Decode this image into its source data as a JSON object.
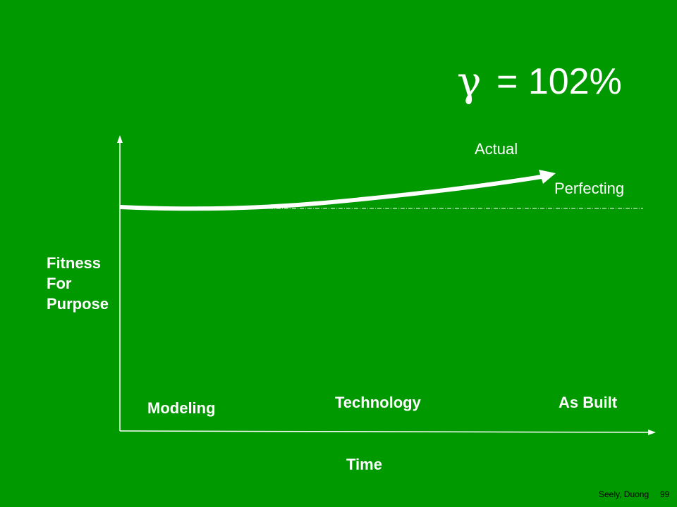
{
  "slide": {
    "gamma_symbol": "γ",
    "gamma_text": "= 102%",
    "actual_label": "Actual",
    "perfecting_label": "Perfecting",
    "y_axis_label": [
      "Fitness",
      "For",
      "Purpose"
    ],
    "phases": [
      "Modeling",
      "Technology",
      "As Built"
    ],
    "x_axis_label": "Time",
    "footer_author": "Seely, Duong",
    "page_number": "99"
  },
  "colors": {
    "background": "#009900",
    "foreground": "#ffffff",
    "footer": "#000000"
  }
}
